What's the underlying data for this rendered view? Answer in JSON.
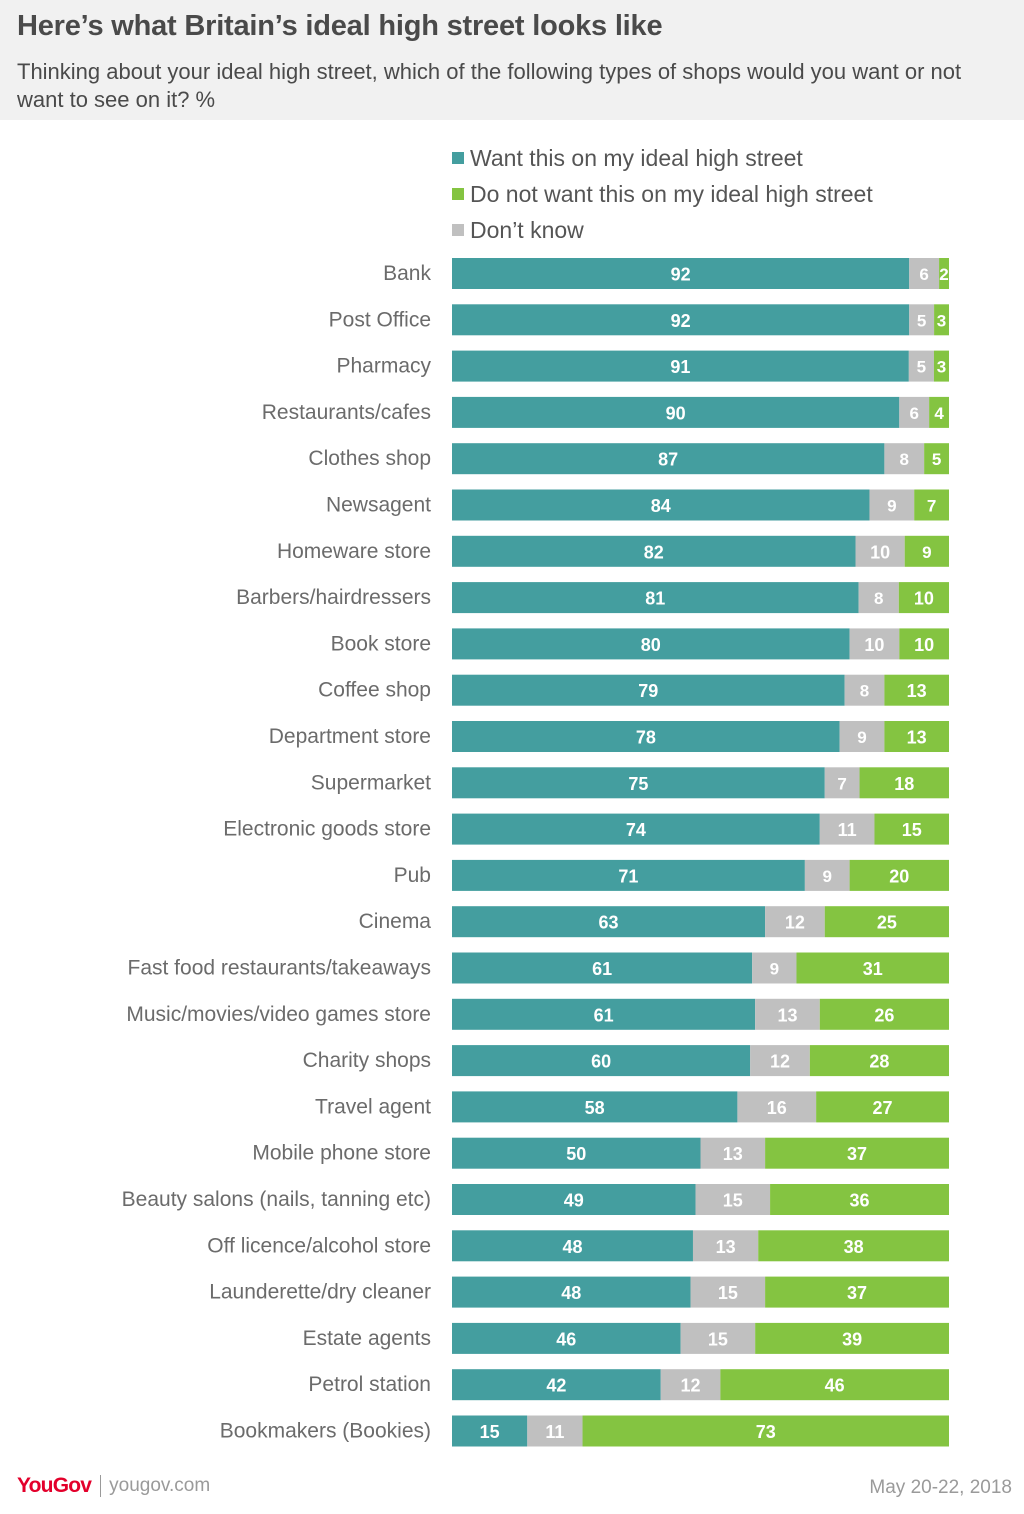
{
  "title": "Here’s what Britain’s ideal high street looks like",
  "subtitle": "Thinking about your ideal high street, which of the following types of shops would you want or not want to see on it? %",
  "legend": [
    {
      "label": "Want this on my ideal high street",
      "color": "#449e9f",
      "icon": "square-swatch"
    },
    {
      "label": "Do not want this on my ideal high street",
      "color": "#84c441",
      "icon": "square-swatch"
    },
    {
      "label": "Don’t know",
      "color": "#c0c0c0",
      "icon": "square-swatch"
    }
  ],
  "chart_data": {
    "type": "bar",
    "orientation": "horizontal",
    "stacked": true,
    "normalized": true,
    "categories": [
      "Bank",
      "Post Office",
      "Pharmacy",
      "Restaurants/cafes",
      "Clothes shop",
      "Newsagent",
      "Homeware store",
      "Barbers/hairdressers",
      "Book store",
      "Coffee shop",
      "Department store",
      "Supermarket",
      "Electronic goods store",
      "Pub",
      "Cinema",
      "Fast food restaurants/takeaways",
      "Music/movies/video games store",
      "Charity shops",
      "Travel agent",
      "Mobile phone store",
      "Beauty salons (nails, tanning etc)",
      "Off licence/alcohol store",
      "Launderette/dry cleaner",
      "Estate agents",
      "Petrol station",
      "Bookmakers (Bookies)"
    ],
    "series": [
      {
        "name": "Want this on my ideal high street",
        "color": "#449e9f",
        "label_color": "#ffffff",
        "values": [
          92,
          92,
          91,
          90,
          87,
          84,
          82,
          81,
          80,
          79,
          78,
          75,
          74,
          71,
          63,
          61,
          61,
          60,
          58,
          50,
          49,
          48,
          48,
          46,
          42,
          15
        ]
      },
      {
        "name": "Don’t know",
        "color": "#c0c0c0",
        "label_color": "#ffffff",
        "values": [
          6,
          5,
          5,
          6,
          8,
          9,
          10,
          8,
          10,
          8,
          9,
          7,
          11,
          9,
          12,
          9,
          13,
          12,
          16,
          13,
          15,
          13,
          15,
          15,
          12,
          11
        ]
      },
      {
        "name": "Do not want this on my ideal high street",
        "color": "#84c441",
        "label_color": "#ffffff",
        "values": [
          2,
          3,
          3,
          4,
          5,
          7,
          9,
          10,
          10,
          13,
          13,
          18,
          15,
          20,
          25,
          31,
          26,
          28,
          27,
          37,
          36,
          38,
          37,
          39,
          46,
          73
        ]
      }
    ],
    "category_label_color": "#6b6b6b",
    "axes_visible": false,
    "grid": false,
    "legend_position": "top"
  },
  "footer": {
    "logo_text": "YouGov",
    "site": "yougov.com",
    "date": "May 20-22, 2018"
  }
}
